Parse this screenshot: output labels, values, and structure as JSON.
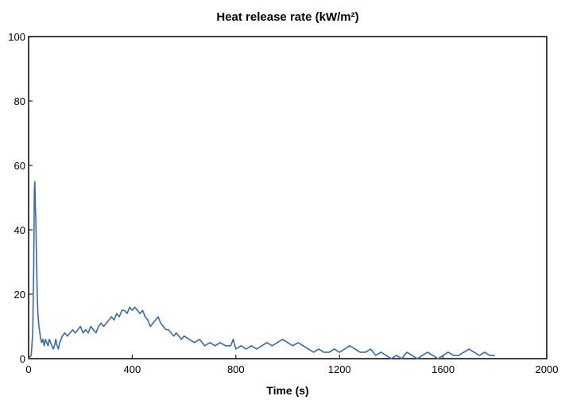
{
  "chart_data": {
    "type": "line",
    "title": "Heat release rate (kW/m²)",
    "xlabel": "Time (s)",
    "ylabel": "",
    "xlim": [
      0,
      2000
    ],
    "ylim": [
      0,
      100
    ],
    "x_ticks": [
      0,
      400,
      800,
      1200,
      1600,
      2000
    ],
    "y_ticks": [
      0,
      20,
      40,
      60,
      80,
      100
    ],
    "grid": false,
    "legend": "none",
    "colors": {
      "line": "#3d6a9e",
      "frame": "#000000",
      "background": "#ffffff"
    },
    "series": [
      {
        "x": [
          0,
          10,
          16,
          20,
          22,
          24,
          26,
          28,
          30,
          33,
          36,
          40,
          45,
          50,
          55,
          60,
          65,
          70,
          75,
          80,
          85,
          90,
          95,
          100,
          105,
          110,
          115,
          120,
          125,
          130,
          140,
          150,
          160,
          170,
          180,
          190,
          200,
          210,
          220,
          230,
          240,
          250,
          260,
          270,
          280,
          290,
          300,
          310,
          320,
          330,
          340,
          350,
          360,
          370,
          380,
          390,
          400,
          410,
          420,
          430,
          440,
          450,
          460,
          470,
          480,
          490,
          500,
          510,
          520,
          530,
          540,
          550,
          560,
          570,
          580,
          590,
          600,
          620,
          640,
          660,
          680,
          700,
          720,
          740,
          760,
          780,
          790,
          800,
          820,
          840,
          860,
          880,
          900,
          920,
          940,
          960,
          980,
          1000,
          1020,
          1040,
          1060,
          1080,
          1100,
          1120,
          1140,
          1160,
          1180,
          1200,
          1220,
          1240,
          1260,
          1280,
          1300,
          1320,
          1340,
          1360,
          1380,
          1400,
          1420,
          1440,
          1460,
          1480,
          1500,
          1520,
          1540,
          1560,
          1580,
          1600,
          1620,
          1640,
          1660,
          1680,
          1700,
          1720,
          1740,
          1760,
          1780,
          1800
        ],
        "y": [
          0,
          1,
          8,
          30,
          52,
          55,
          47,
          43,
          33,
          20,
          14,
          10,
          7,
          5,
          6,
          4,
          6,
          5,
          4,
          6,
          5,
          4,
          3,
          4,
          6,
          4,
          3,
          5,
          6,
          7,
          8,
          7,
          8,
          9,
          8,
          9,
          10,
          8,
          9,
          8,
          10,
          9,
          8,
          10,
          11,
          10,
          11,
          12,
          13,
          12,
          14,
          13,
          15,
          15,
          14,
          16,
          15,
          16,
          15,
          14,
          15,
          13,
          12,
          10,
          11,
          12,
          13,
          11,
          10,
          9,
          9,
          8,
          7,
          8,
          7,
          6,
          7,
          6,
          5,
          6,
          4,
          5,
          4,
          5,
          4,
          4,
          6,
          3,
          4,
          3,
          4,
          3,
          4,
          5,
          4,
          5,
          6,
          5,
          4,
          5,
          4,
          3,
          2,
          3,
          2,
          2,
          3,
          2,
          3,
          4,
          3,
          2,
          2,
          3,
          1,
          2,
          1,
          0,
          1,
          0,
          2,
          1,
          0,
          1,
          2,
          1,
          0,
          1,
          2,
          1,
          1,
          2,
          3,
          2,
          1,
          2,
          1,
          1
        ]
      }
    ]
  }
}
